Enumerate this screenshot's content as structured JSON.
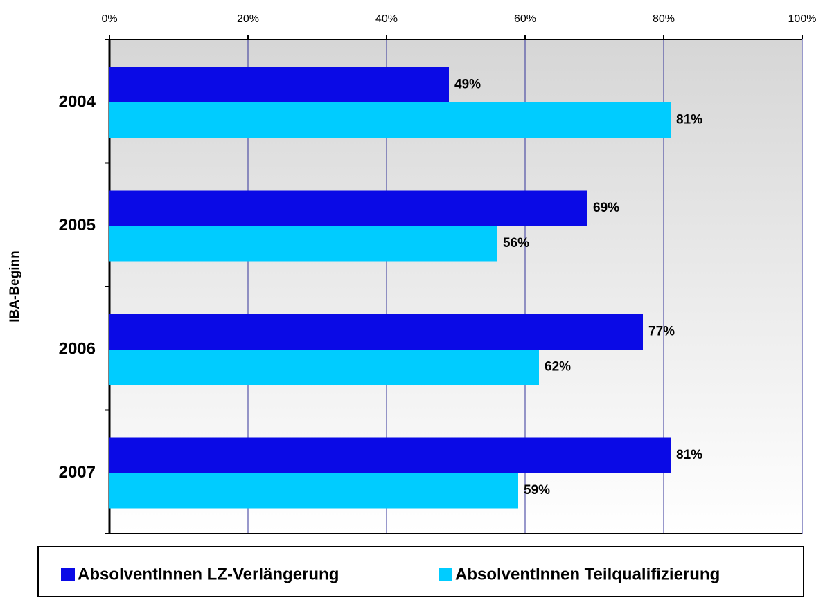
{
  "chart_data": {
    "type": "bar",
    "orientation": "horizontal",
    "y_label": "IBA-Beginn",
    "categories": [
      "2004",
      "2005",
      "2006",
      "2007"
    ],
    "series": [
      {
        "name": "AbsolventInnen LZ-Verlängerung",
        "color": "#0a0ae6",
        "values": [
          49,
          69,
          77,
          81
        ],
        "value_labels": [
          "49%",
          "69%",
          "77%",
          "81%"
        ]
      },
      {
        "name": "AbsolventInnen Teilqualifizierung",
        "color": "#00ccff",
        "values": [
          81,
          56,
          62,
          59
        ],
        "value_labels": [
          "81%",
          "56%",
          "62%",
          "59%"
        ]
      }
    ],
    "xlim": [
      0,
      100
    ],
    "xticks": [
      {
        "value": 0,
        "label": "0%"
      },
      {
        "value": 20,
        "label": "20%"
      },
      {
        "value": 40,
        "label": "40%"
      },
      {
        "value": 60,
        "label": "60%"
      },
      {
        "value": 80,
        "label": "80%"
      },
      {
        "value": 100,
        "label": "100%"
      }
    ],
    "grid": true,
    "legend": "bottom"
  }
}
